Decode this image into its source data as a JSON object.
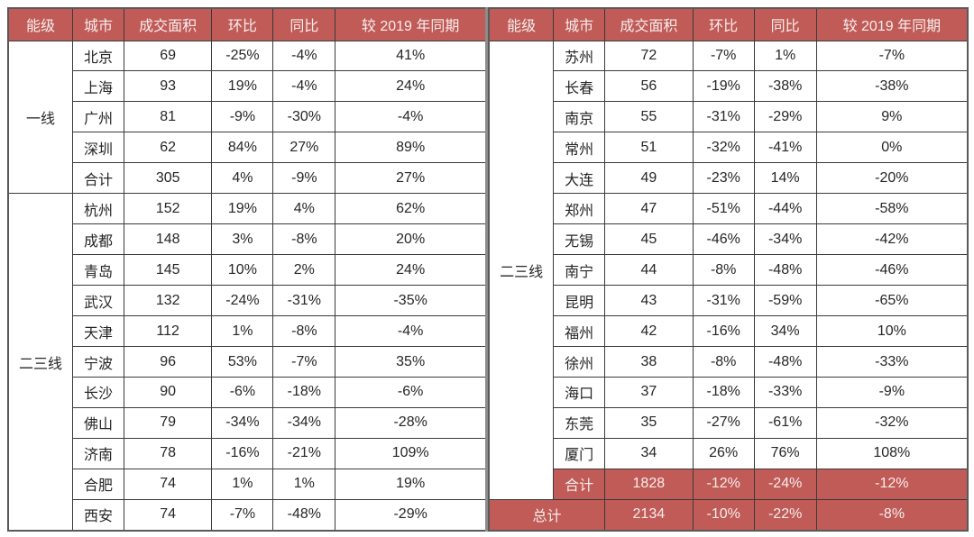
{
  "colors": {
    "header_bg": "#c05b57",
    "header_text": "#f6edec",
    "summary_bg": "#c05b57",
    "summary_text": "#f6edec",
    "grid_line": "#3a3a3a",
    "body_text": "#262626"
  },
  "headers": [
    "能级",
    "城市",
    "成交面积",
    "环比",
    "同比",
    "较 2019 年同期"
  ],
  "panels": [
    {
      "name": "left",
      "groups": [
        {
          "tier": "一线",
          "rows": [
            {
              "city": "北京",
              "values": [
                "69",
                "-25%",
                "-4%",
                "41%"
              ],
              "highlight": false
            },
            {
              "city": "上海",
              "values": [
                "93",
                "19%",
                "-4%",
                "24%"
              ],
              "highlight": false
            },
            {
              "city": "广州",
              "values": [
                "81",
                "-9%",
                "-30%",
                "-4%"
              ],
              "highlight": false
            },
            {
              "city": "深圳",
              "values": [
                "62",
                "84%",
                "27%",
                "89%"
              ],
              "highlight": false
            },
            {
              "city": "合计",
              "values": [
                "305",
                "4%",
                "-9%",
                "27%"
              ],
              "highlight": false
            }
          ]
        },
        {
          "tier": "二三线",
          "rows": [
            {
              "city": "杭州",
              "values": [
                "152",
                "19%",
                "4%",
                "62%"
              ],
              "highlight": false
            },
            {
              "city": "成都",
              "values": [
                "148",
                "3%",
                "-8%",
                "20%"
              ],
              "highlight": false
            },
            {
              "city": "青岛",
              "values": [
                "145",
                "10%",
                "2%",
                "24%"
              ],
              "highlight": false
            },
            {
              "city": "武汉",
              "values": [
                "132",
                "-24%",
                "-31%",
                "-35%"
              ],
              "highlight": false
            },
            {
              "city": "天津",
              "values": [
                "112",
                "1%",
                "-8%",
                "-4%"
              ],
              "highlight": false
            },
            {
              "city": "宁波",
              "values": [
                "96",
                "53%",
                "-7%",
                "35%"
              ],
              "highlight": false
            },
            {
              "city": "长沙",
              "values": [
                "90",
                "-6%",
                "-18%",
                "-6%"
              ],
              "highlight": false
            },
            {
              "city": "佛山",
              "values": [
                "79",
                "-34%",
                "-34%",
                "-28%"
              ],
              "highlight": false
            },
            {
              "city": "济南",
              "values": [
                "78",
                "-16%",
                "-21%",
                "109%"
              ],
              "highlight": false
            },
            {
              "city": "合肥",
              "values": [
                "74",
                "1%",
                "1%",
                "19%"
              ],
              "highlight": false
            },
            {
              "city": "西安",
              "values": [
                "74",
                "-7%",
                "-48%",
                "-29%"
              ],
              "highlight": false
            }
          ]
        }
      ],
      "total": null
    },
    {
      "name": "right",
      "groups": [
        {
          "tier": "二三线",
          "rows": [
            {
              "city": "苏州",
              "values": [
                "72",
                "-7%",
                "1%",
                "-7%"
              ],
              "highlight": false
            },
            {
              "city": "长春",
              "values": [
                "56",
                "-19%",
                "-38%",
                "-38%"
              ],
              "highlight": false
            },
            {
              "city": "南京",
              "values": [
                "55",
                "-31%",
                "-29%",
                "9%"
              ],
              "highlight": false
            },
            {
              "city": "常州",
              "values": [
                "51",
                "-32%",
                "-41%",
                "0%"
              ],
              "highlight": false
            },
            {
              "city": "大连",
              "values": [
                "49",
                "-23%",
                "14%",
                "-20%"
              ],
              "highlight": false
            },
            {
              "city": "郑州",
              "values": [
                "47",
                "-51%",
                "-44%",
                "-58%"
              ],
              "highlight": false
            },
            {
              "city": "无锡",
              "values": [
                "45",
                "-46%",
                "-34%",
                "-42%"
              ],
              "highlight": false
            },
            {
              "city": "南宁",
              "values": [
                "44",
                "-8%",
                "-48%",
                "-46%"
              ],
              "highlight": false
            },
            {
              "city": "昆明",
              "values": [
                "43",
                "-31%",
                "-59%",
                "-65%"
              ],
              "highlight": false
            },
            {
              "city": "福州",
              "values": [
                "42",
                "-16%",
                "34%",
                "10%"
              ],
              "highlight": false
            },
            {
              "city": "徐州",
              "values": [
                "38",
                "-8%",
                "-48%",
                "-33%"
              ],
              "highlight": false
            },
            {
              "city": "海口",
              "values": [
                "37",
                "-18%",
                "-33%",
                "-9%"
              ],
              "highlight": false
            },
            {
              "city": "东莞",
              "values": [
                "35",
                "-27%",
                "-61%",
                "-32%"
              ],
              "highlight": false
            },
            {
              "city": "厦门",
              "values": [
                "34",
                "26%",
                "76%",
                "108%"
              ],
              "highlight": false
            },
            {
              "city": "合计",
              "values": [
                "1828",
                "-12%",
                "-24%",
                "-12%"
              ],
              "highlight": true
            }
          ]
        }
      ],
      "total": {
        "label": "总计",
        "values": [
          "2134",
          "-10%",
          "-22%",
          "-8%"
        ]
      }
    }
  ]
}
